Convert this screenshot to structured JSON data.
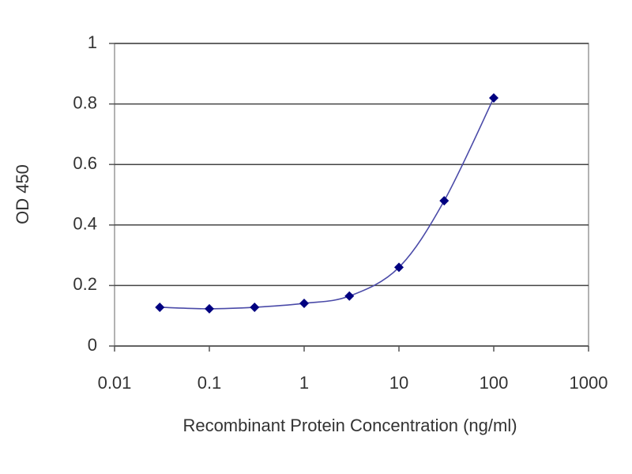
{
  "chart_data": {
    "type": "line",
    "x_label": "Recombinant Protein Concentration (ng/ml)",
    "y_label": "OD 450",
    "x": [
      0.03,
      0.1,
      0.3,
      1,
      3,
      10,
      30,
      100
    ],
    "series": [
      {
        "color": "#000080",
        "line_color": "#4a4aa8",
        "values": [
          0.128,
          0.123,
          0.128,
          0.141,
          0.165,
          0.26,
          0.48,
          0.82
        ]
      }
    ],
    "xscale": "log",
    "xlim": [
      0.01,
      1000
    ],
    "xticks": [
      0.01,
      0.1,
      1,
      10,
      100,
      1000
    ],
    "ylim": [
      0,
      1
    ],
    "yticks": [
      0,
      0.2,
      0.4,
      0.6,
      0.8,
      1
    ],
    "grid": true
  }
}
